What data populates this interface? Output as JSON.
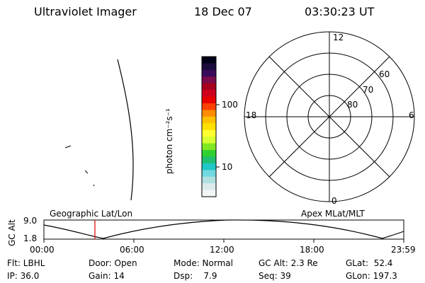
{
  "header": {
    "title": "Ultraviolet Imager",
    "date": "18 Dec 07",
    "time": "03:30:23 UT"
  },
  "colorbar": {
    "unit_label": "photon cm⁻²s⁻¹",
    "ticks": [
      "100",
      "10"
    ],
    "colors": [
      "#000018",
      "#1b0b3a",
      "#3a0a5a",
      "#7a0a4a",
      "#a8001e",
      "#d0001c",
      "#e80000",
      "#ff4000",
      "#ff8c00",
      "#ffc000",
      "#ffe000",
      "#ffff30",
      "#d8ff30",
      "#80e820",
      "#30d030",
      "#20c070",
      "#20c8c8",
      "#70d8e0",
      "#b0e0e0",
      "#dcebeb",
      "#f2f6f6"
    ]
  },
  "polar": {
    "mlt_labels": {
      "top": "12",
      "bottom": "0",
      "left": "18",
      "right": "6"
    },
    "lat_labels": [
      "60",
      "70",
      "80"
    ]
  },
  "timeline": {
    "left_label": "Geographic Lat/Lon",
    "right_label": "Apex MLat/MLT",
    "axis_title": "GC Alt",
    "y_ticks": [
      "9.0",
      "1.8"
    ],
    "x_ticks": [
      "00:00",
      "06:00",
      "12:00",
      "18:00",
      "23:59"
    ],
    "cursor_color": "#e00000"
  },
  "footer": {
    "filter": "Flt: LBHL",
    "ip": "IP: 36.0",
    "door": "Door: Open",
    "gain": "Gain: 14",
    "mode": "Mode: Normal",
    "dsp": "Dsp:    7.9",
    "gc_alt": "GC Alt: 2.3 Re",
    "seq": "Seq: 39",
    "glat": "GLat:  52.4",
    "glon": "GLon: 197.3"
  }
}
